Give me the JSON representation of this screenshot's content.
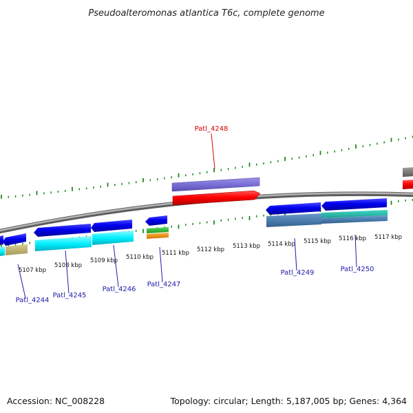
{
  "title": "Pseudoalteromonas atlantica T6c, complete genome",
  "footer": {
    "accession": "Accession: NC_008228",
    "summary": "Topology: circular; Length: 5,187,005 bp; Genes: 4,364"
  },
  "colors": {
    "backbone": "#8c8c8c",
    "tick": "#1a8a1a",
    "gene_label": "#1a1aa8",
    "highlight_label": "#d40000"
  },
  "tick_labels": [
    "5107 kbp",
    "5108 kbp",
    "5109 kbp",
    "5110 kbp",
    "5111 kbp",
    "5112 kbp",
    "5113 kbp",
    "5114 kbp",
    "5115 kbp",
    "5116 kbp",
    "5117 kbp"
  ],
  "gene_labels": [
    {
      "text": "Patl_4244",
      "highlight": false
    },
    {
      "text": "Patl_4245",
      "highlight": false
    },
    {
      "text": "Patl_4246",
      "highlight": false
    },
    {
      "text": "Patl_4247",
      "highlight": false
    },
    {
      "text": "Patl_4248",
      "highlight": true
    },
    {
      "text": "Patl_4249",
      "highlight": false
    },
    {
      "text": "Patl_4250",
      "highlight": false
    }
  ]
}
